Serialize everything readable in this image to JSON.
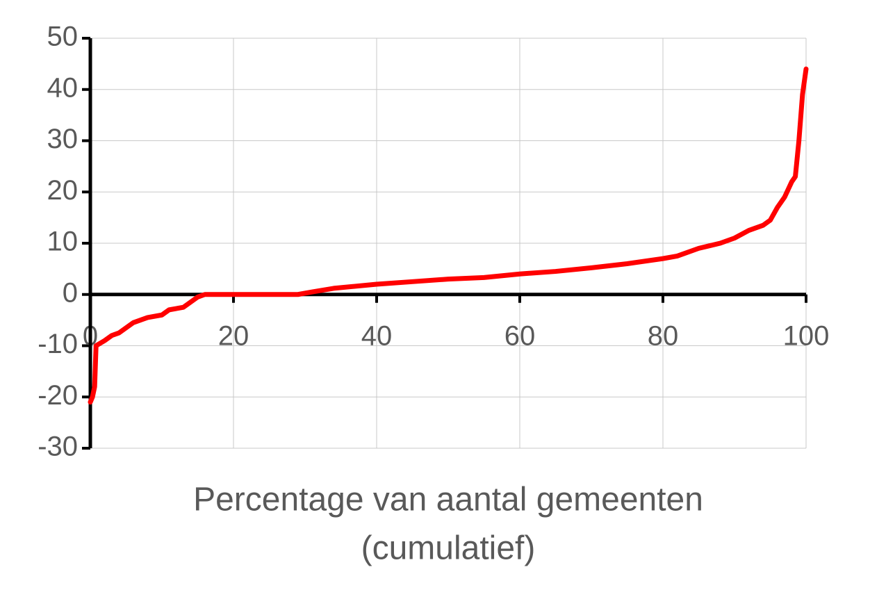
{
  "chart_data": {
    "type": "line",
    "xlabel": [
      "Percentage van aantal gemeenten",
      "(cumulatief)"
    ],
    "xlim": [
      0,
      100
    ],
    "xticks": [
      0,
      20,
      40,
      60,
      80,
      100
    ],
    "ylim": [
      -30,
      50
    ],
    "yticks": [
      -30,
      -20,
      -10,
      0,
      10,
      20,
      30,
      40,
      50
    ],
    "grid": true,
    "series": [
      {
        "color": "#ff0000",
        "x": [
          0,
          0.3,
          0.6,
          0.8,
          2,
          3,
          4,
          5,
          6,
          8,
          10,
          11,
          13,
          14,
          15,
          16,
          29,
          31,
          34,
          40,
          45,
          50,
          55,
          60,
          65,
          70,
          75,
          80,
          82,
          85,
          88,
          90,
          92,
          94,
          95,
          96,
          97,
          98,
          98.5,
          99,
          99.5,
          100
        ],
        "values": [
          -21,
          -20,
          -18,
          -10,
          -9,
          -8,
          -7.5,
          -6.5,
          -5.5,
          -4.5,
          -4,
          -3,
          -2.5,
          -1.5,
          -0.5,
          0,
          0,
          0.5,
          1.2,
          2,
          2.5,
          3,
          3.3,
          4,
          4.5,
          5.2,
          6,
          7,
          7.5,
          9,
          10,
          11,
          12.5,
          13.5,
          14.5,
          17,
          19,
          22,
          23,
          30,
          39,
          44
        ]
      }
    ]
  }
}
